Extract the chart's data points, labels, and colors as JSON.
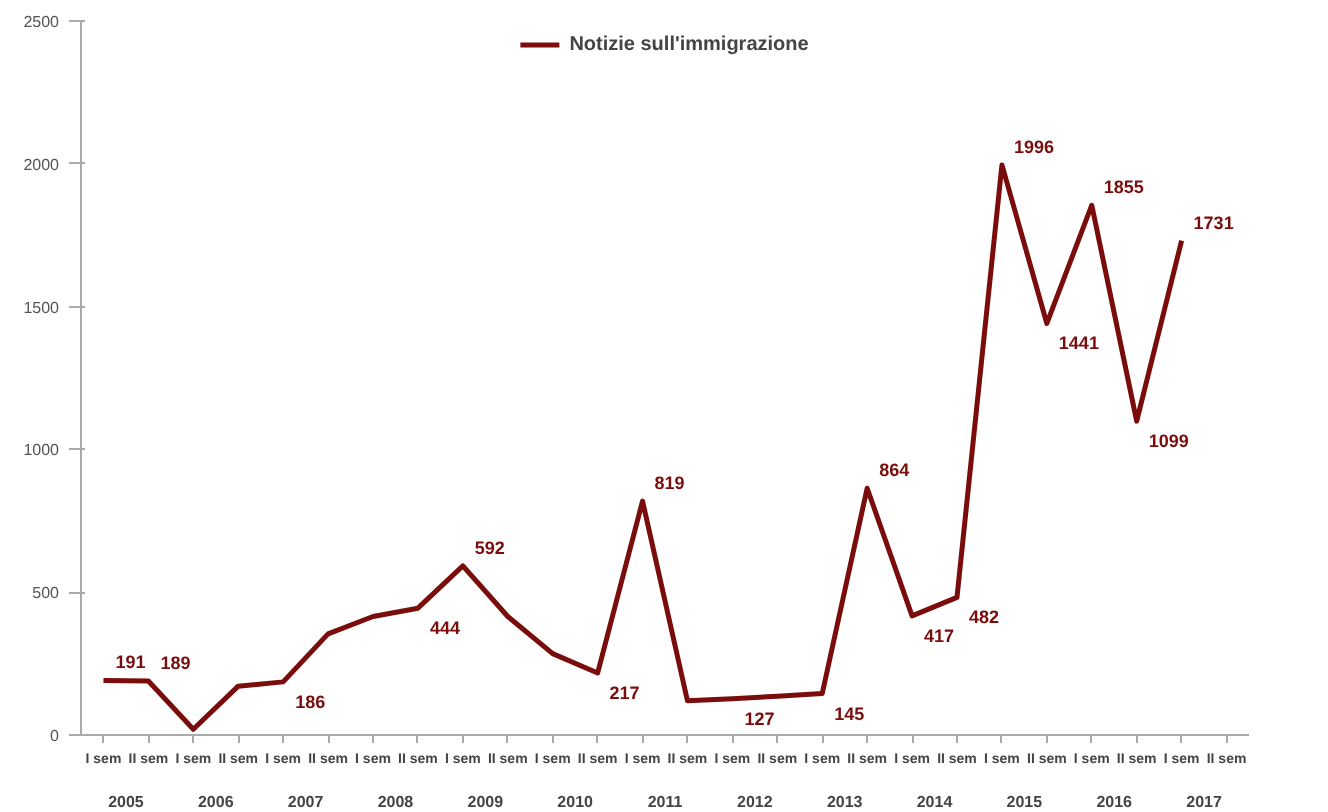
{
  "chart_data": {
    "type": "line",
    "categories": [
      "I sem",
      "II sem",
      "I sem",
      "II sem",
      "I sem",
      "II sem",
      "I sem",
      "II sem",
      "I sem",
      "II sem",
      "I sem",
      "II sem",
      "I sem",
      "II sem",
      "I sem",
      "II sem",
      "I sem",
      "II sem",
      "I sem",
      "II sem",
      "I sem",
      "II sem",
      "I sem",
      "II sem",
      "I sem",
      "II sem"
    ],
    "annotations": [
      "2005",
      "2006",
      "2007",
      "2008",
      "2009",
      "2010",
      "2011",
      "2012",
      "2013",
      "2014",
      "2015",
      "2016",
      "2017"
    ],
    "series": [
      {
        "name": "Notizie sull'immigrazione",
        "color": "#7a0c0c",
        "values": [
          191,
          189,
          20,
          171,
          186,
          354,
          415,
          444,
          592,
          415,
          285,
          217,
          819,
          120,
          127,
          136,
          145,
          864,
          417,
          482,
          1996,
          1441,
          1855,
          1099,
          1731,
          null
        ],
        "value_labels": [
          "191",
          "189",
          null,
          null,
          "186",
          null,
          null,
          "444",
          "592",
          null,
          null,
          "217",
          "819",
          null,
          "127",
          null,
          "145",
          "864",
          "417",
          "482",
          "1996",
          "1441",
          "1855",
          "1099",
          "1731",
          null
        ]
      }
    ],
    "ylim": [
      0,
      2500
    ],
    "yticks": [
      0,
      500,
      1000,
      1500,
      2000,
      2500
    ],
    "grid": false,
    "legend": "top"
  }
}
